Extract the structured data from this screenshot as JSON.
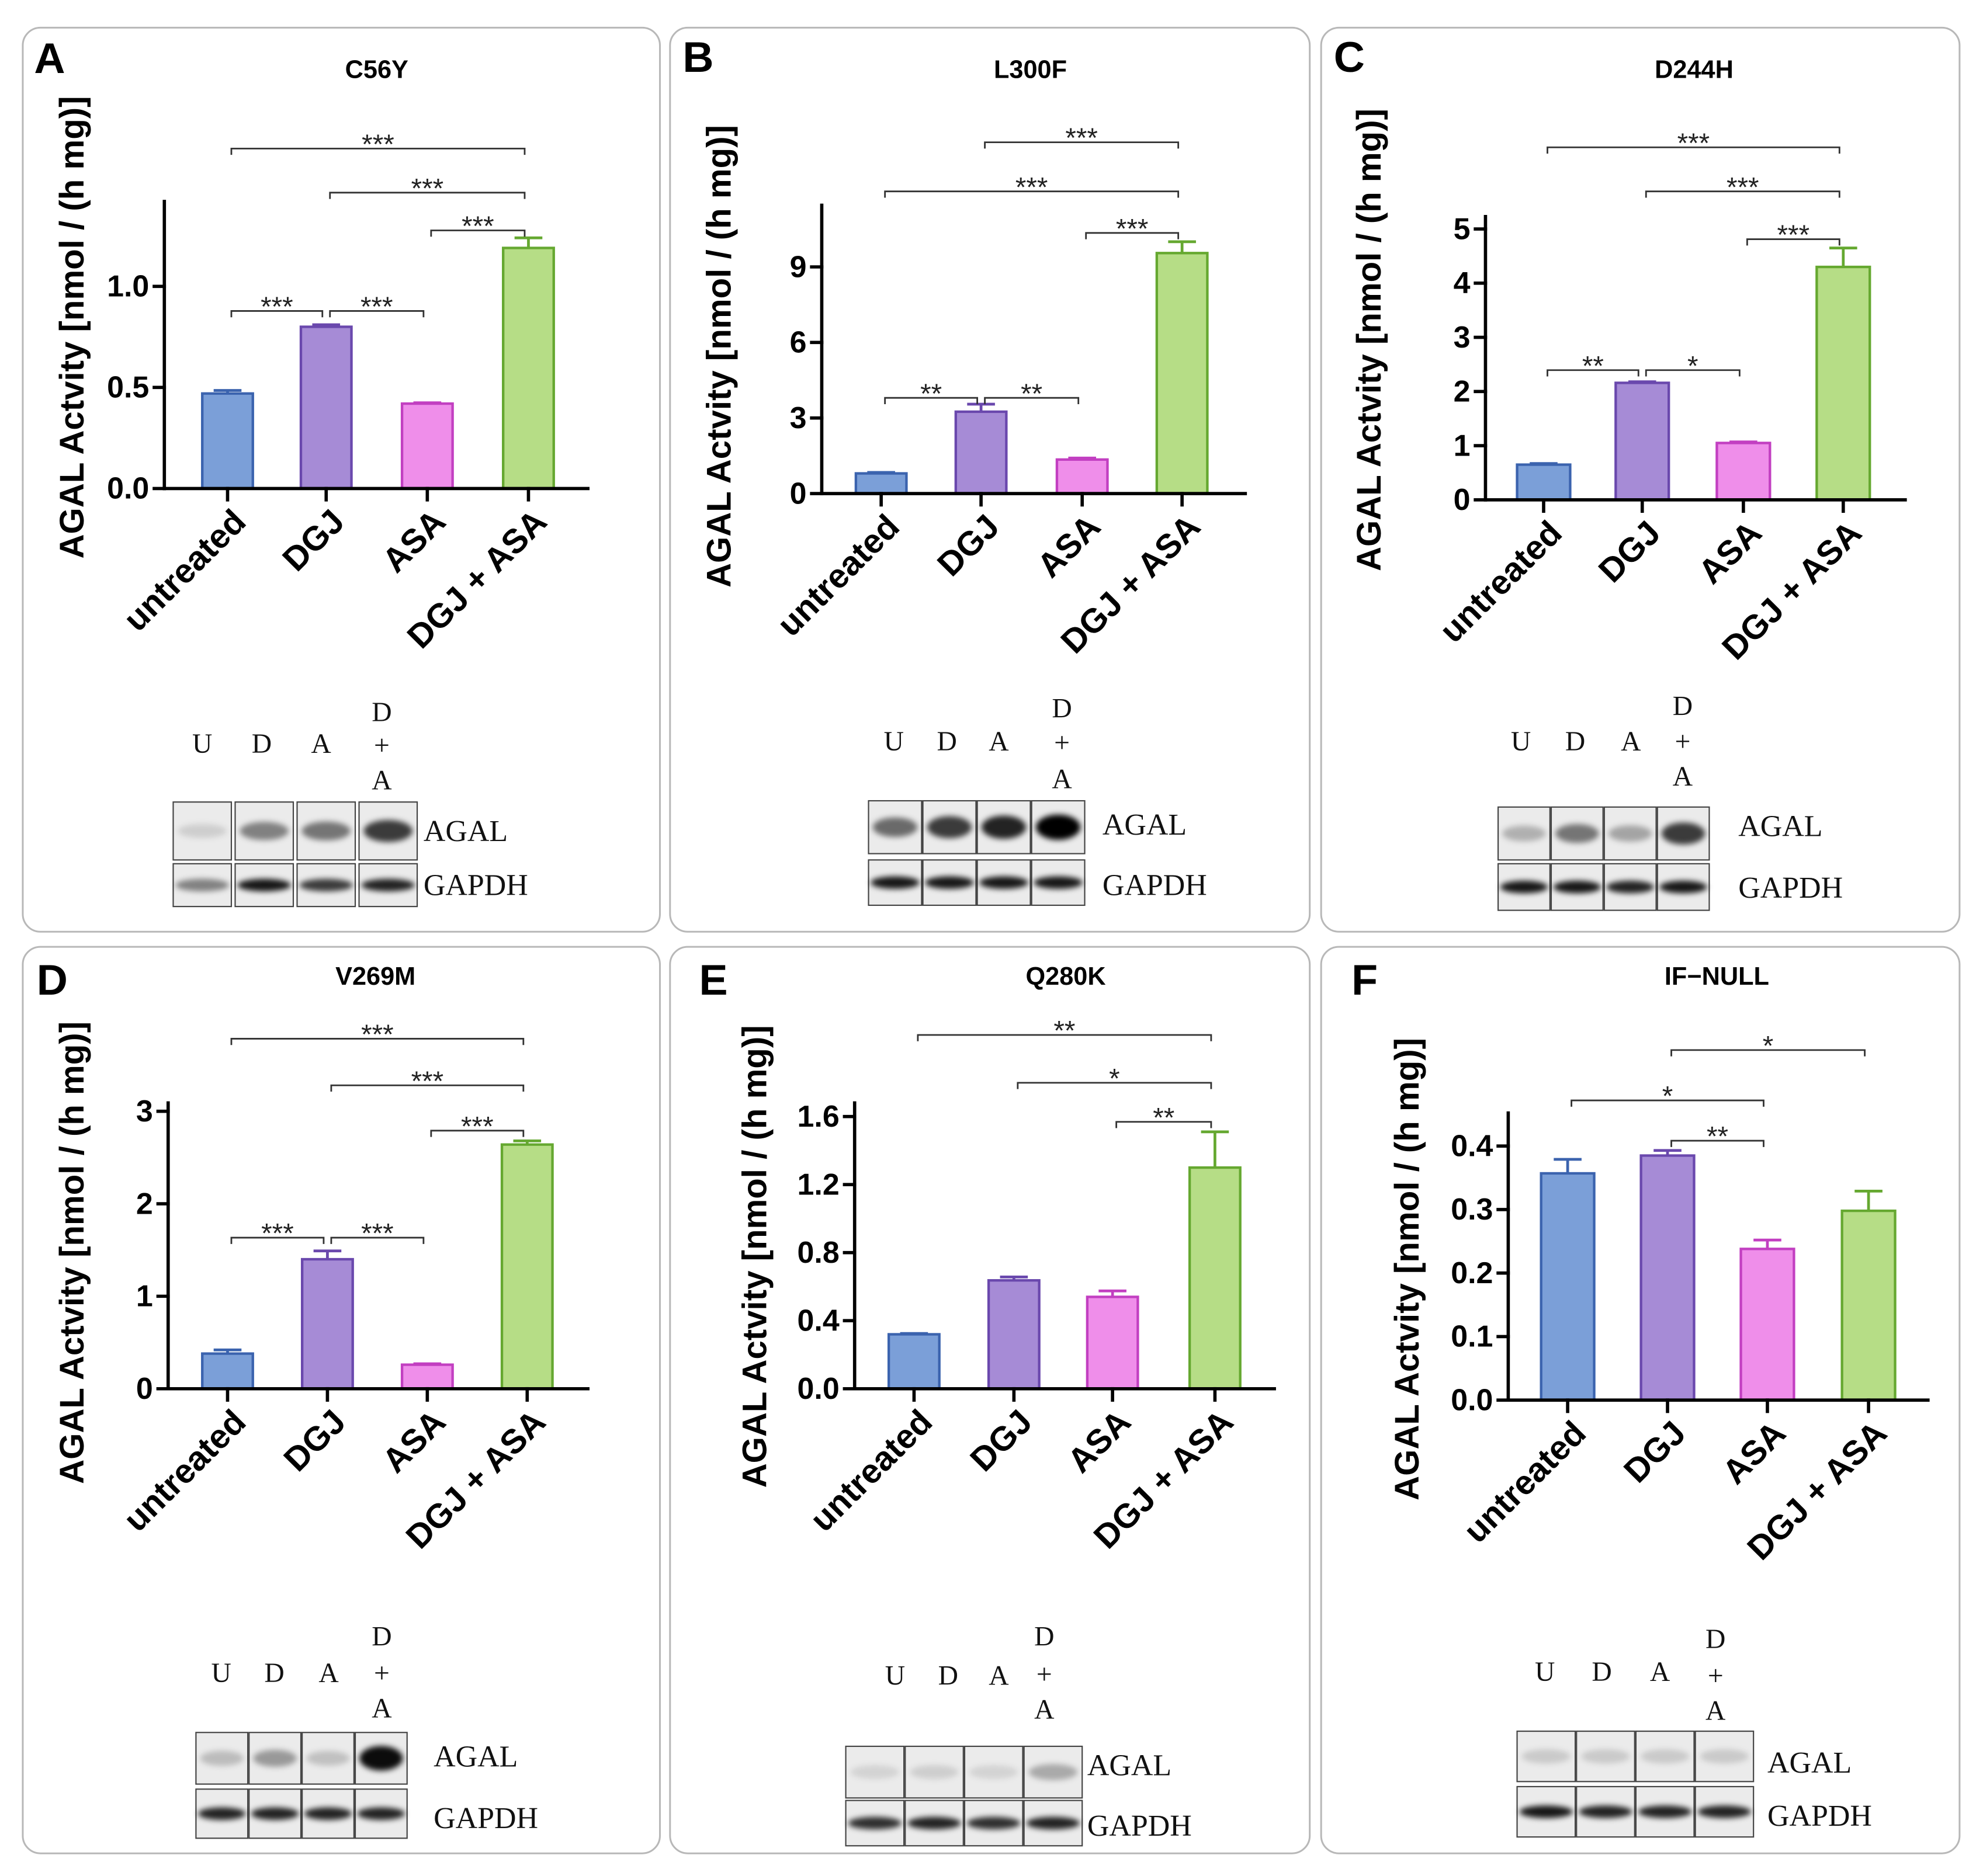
{
  "series_colors": [
    {
      "fill": "#7b9fd8",
      "stroke": "#3b63ae"
    },
    {
      "fill": "#a68bd6",
      "stroke": "#6a48ad"
    },
    {
      "fill": "#ef8eea",
      "stroke": "#c23fc1"
    },
    {
      "fill": "#b6dd86",
      "stroke": "#65a830"
    }
  ],
  "chart_data": [
    {
      "panel": "A",
      "type": "bar",
      "title": "C56Y",
      "categories": [
        "untreated",
        "DGJ",
        "ASA",
        "DGJ + ASA"
      ],
      "values": [
        0.47,
        0.8,
        0.42,
        1.19
      ],
      "errors": [
        0.015,
        0.01,
        0.004,
        0.05
      ],
      "ylabel": "AGAL Actvity [nmol / (h mg)]",
      "ylim": [
        0,
        1.42
      ],
      "yticks": [
        0,
        0.5,
        1.0
      ],
      "ytick_labels": [
        "0.0",
        "0.5",
        "1.0"
      ],
      "significance": [
        {
          "from": 0,
          "to": 3,
          "label": "***"
        },
        {
          "from": 1,
          "to": 3,
          "label": "***"
        },
        {
          "from": 2,
          "to": 3,
          "label": "***"
        },
        {
          "from": 0,
          "to": 1,
          "label": "***"
        },
        {
          "from": 1,
          "to": 2,
          "label": "***"
        }
      ],
      "blot": {
        "lane_labels": [
          "U",
          "D",
          "A"
        ],
        "combo_lane_label": [
          "D",
          "+",
          "A"
        ],
        "bands": [
          "AGAL",
          "GAPDH"
        ],
        "agal_intensity": [
          0.12,
          0.45,
          0.5,
          0.75
        ],
        "gapdh_intensity": [
          0.45,
          0.9,
          0.75,
          0.85
        ]
      }
    },
    {
      "panel": "B",
      "type": "bar",
      "title": "L300F",
      "categories": [
        "untreated",
        "DGJ",
        "ASA",
        "DGJ + ASA"
      ],
      "values": [
        0.8,
        3.25,
        1.35,
        9.55
      ],
      "errors": [
        0.04,
        0.3,
        0.06,
        0.45
      ],
      "ylabel": "AGAL Actvity [nmol / (h mg)]",
      "ylim": [
        0,
        11.45
      ],
      "yticks": [
        0,
        3,
        6,
        9
      ],
      "ytick_labels": [
        "0",
        "3",
        "6",
        "9"
      ],
      "significance": [
        {
          "from": 1,
          "to": 3,
          "label": "***"
        },
        {
          "from": 0,
          "to": 3,
          "label": "***"
        },
        {
          "from": 2,
          "to": 3,
          "label": "***"
        },
        {
          "from": 0,
          "to": 1,
          "label": "**"
        },
        {
          "from": 1,
          "to": 2,
          "label": "**"
        }
      ],
      "blot": {
        "lane_labels": [
          "U",
          "D",
          "A"
        ],
        "combo_lane_label": [
          "D",
          "+",
          "A"
        ],
        "bands": [
          "AGAL",
          "GAPDH"
        ],
        "agal_intensity": [
          0.55,
          0.75,
          0.85,
          1.0
        ],
        "gapdh_intensity": [
          0.9,
          0.9,
          0.9,
          0.9
        ]
      }
    },
    {
      "panel": "C",
      "type": "bar",
      "title": "D244H",
      "categories": [
        "untreated",
        "DGJ",
        "ASA",
        "DGJ + ASA"
      ],
      "values": [
        0.65,
        2.16,
        1.05,
        4.3
      ],
      "errors": [
        0.02,
        0.02,
        0.02,
        0.35
      ],
      "ylabel": "AGAL Actvity [nmol / (h mg)]",
      "ylim": [
        0,
        5.23
      ],
      "yticks": [
        0,
        1,
        2,
        3,
        4,
        5
      ],
      "ytick_labels": [
        "0",
        "1",
        "2",
        "3",
        "4",
        "5"
      ],
      "significance": [
        {
          "from": 0,
          "to": 3,
          "label": "***"
        },
        {
          "from": 1,
          "to": 3,
          "label": "***"
        },
        {
          "from": 2,
          "to": 3,
          "label": "***"
        },
        {
          "from": 0,
          "to": 1,
          "label": "**"
        },
        {
          "from": 1,
          "to": 2,
          "label": "*"
        }
      ],
      "blot": {
        "lane_labels": [
          "U",
          "D",
          "A"
        ],
        "combo_lane_label": [
          "D",
          "+",
          "A"
        ],
        "bands": [
          "AGAL",
          "GAPDH"
        ],
        "agal_intensity": [
          0.25,
          0.5,
          0.3,
          0.75
        ],
        "gapdh_intensity": [
          0.9,
          0.9,
          0.85,
          0.9
        ]
      }
    },
    {
      "panel": "D",
      "type": "bar",
      "title": "V269M",
      "categories": [
        "untreated",
        "DGJ",
        "ASA",
        "DGJ + ASA"
      ],
      "values": [
        0.38,
        1.4,
        0.26,
        2.64
      ],
      "errors": [
        0.04,
        0.09,
        0.01,
        0.04
      ],
      "ylabel": "AGAL Actvity [nmol / (h mg)]",
      "ylim": [
        0,
        3.09
      ],
      "yticks": [
        0,
        1,
        2,
        3
      ],
      "ytick_labels": [
        "0",
        "1",
        "2",
        "3"
      ],
      "significance": [
        {
          "from": 0,
          "to": 3,
          "label": "***"
        },
        {
          "from": 1,
          "to": 3,
          "label": "***"
        },
        {
          "from": 2,
          "to": 3,
          "label": "***"
        },
        {
          "from": 0,
          "to": 1,
          "label": "***"
        },
        {
          "from": 1,
          "to": 2,
          "label": "***"
        }
      ],
      "blot": {
        "lane_labels": [
          "U",
          "D",
          "A"
        ],
        "combo_lane_label": [
          "D",
          "+",
          "A"
        ],
        "bands": [
          "AGAL",
          "GAPDH"
        ],
        "agal_intensity": [
          0.2,
          0.35,
          0.18,
          0.95
        ],
        "gapdh_intensity": [
          0.85,
          0.85,
          0.85,
          0.85
        ]
      }
    },
    {
      "panel": "E",
      "type": "bar",
      "title": "Q280K",
      "categories": [
        "untreated",
        "DGJ",
        "ASA",
        "DGJ + ASA"
      ],
      "values": [
        0.32,
        0.637,
        0.54,
        1.3
      ],
      "errors": [
        0.005,
        0.02,
        0.035,
        0.21
      ],
      "ylabel": "AGAL Actvity [nmol / (h mg)]",
      "ylim": [
        0,
        1.68
      ],
      "yticks": [
        0,
        0.4,
        0.8,
        1.2,
        1.6
      ],
      "ytick_labels": [
        "0.0",
        "0.4",
        "0.8",
        "1.2",
        "1.6"
      ],
      "significance": [
        {
          "from": 0,
          "to": 3,
          "label": "**"
        },
        {
          "from": 1,
          "to": 3,
          "label": "*"
        },
        {
          "from": 2,
          "to": 3,
          "label": "**"
        }
      ],
      "blot": {
        "lane_labels": [
          "U",
          "D",
          "A"
        ],
        "combo_lane_label": [
          "D",
          "+",
          "A"
        ],
        "bands": [
          "AGAL",
          "GAPDH"
        ],
        "agal_intensity": [
          0.1,
          0.12,
          0.1,
          0.28
        ],
        "gapdh_intensity": [
          0.8,
          0.85,
          0.8,
          0.85
        ]
      }
    },
    {
      "panel": "F",
      "type": "bar",
      "title": "IF−NULL",
      "categories": [
        "untreated",
        "DGJ",
        "ASA",
        "DGJ + ASA"
      ],
      "values": [
        0.357,
        0.385,
        0.238,
        0.298
      ],
      "errors": [
        0.022,
        0.008,
        0.014,
        0.031
      ],
      "ylabel": "AGAL Actvity [nmol / (h mg)]",
      "ylim": [
        0,
        0.452
      ],
      "yticks": [
        0,
        0.1,
        0.2,
        0.3,
        0.4
      ],
      "ytick_labels": [
        "0.0",
        "0.1",
        "0.2",
        "0.3",
        "0.4"
      ],
      "significance": [
        {
          "from": 1,
          "to": 3,
          "label": "*"
        },
        {
          "from": 0,
          "to": 2,
          "label": "*"
        },
        {
          "from": 1,
          "to": 2,
          "label": "**"
        }
      ],
      "blot": {
        "lane_labels": [
          "U",
          "D",
          "A"
        ],
        "combo_lane_label": [
          "D",
          "+",
          "A"
        ],
        "bands": [
          "AGAL",
          "GAPDH"
        ],
        "agal_intensity": [
          0.14,
          0.14,
          0.14,
          0.14
        ],
        "gapdh_intensity": [
          0.9,
          0.85,
          0.85,
          0.85
        ]
      }
    }
  ]
}
